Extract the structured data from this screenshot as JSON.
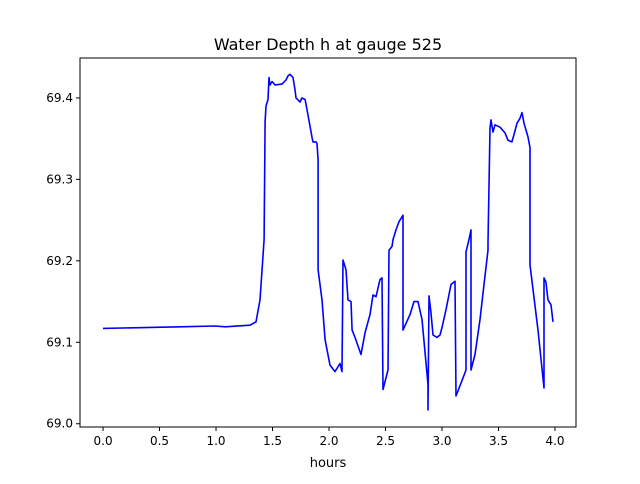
{
  "chart_data": {
    "type": "line",
    "title": "Water Depth h at gauge 525",
    "xlabel": "hours",
    "ylabel": "",
    "xlim": [
      -0.204,
      4.186
    ],
    "ylim": [
      68.996,
      69.449
    ],
    "xticks": [
      0.0,
      0.5,
      1.0,
      1.5,
      2.0,
      2.5,
      3.0,
      3.5,
      4.0
    ],
    "xtick_labels": [
      "0.0",
      "0.5",
      "1.0",
      "1.5",
      "2.0",
      "2.5",
      "3.0",
      "3.5",
      "4.0"
    ],
    "yticks": [
      69.0,
      69.1,
      69.2,
      69.3,
      69.4
    ],
    "ytick_labels": [
      "69.0",
      "69.1",
      "69.2",
      "69.3",
      "69.4"
    ],
    "grid": false,
    "series": [
      {
        "name": "h",
        "color": "#0000ff",
        "x": [
          0,
          0.681,
          0.991,
          1.08,
          1.301,
          1.354,
          1.389,
          1.425,
          1.434,
          1.442,
          1.46,
          1.469,
          1.478,
          1.496,
          1.522,
          1.584,
          1.619,
          1.637,
          1.655,
          1.681,
          1.699,
          1.708,
          1.743,
          1.761,
          1.788,
          1.814,
          1.85,
          1.858,
          1.885,
          1.894,
          1.903,
          1.903,
          1.938,
          1.965,
          2.009,
          2.053,
          2.097,
          2.115,
          2.124,
          2.15,
          2.168,
          2.195,
          2.204,
          2.23,
          2.248,
          2.283,
          2.319,
          2.363,
          2.389,
          2.416,
          2.451,
          2.469,
          2.478,
          2.522,
          2.531,
          2.558,
          2.566,
          2.593,
          2.619,
          2.655,
          2.655,
          2.717,
          2.752,
          2.788,
          2.823,
          2.876,
          2.876,
          2.885,
          2.903,
          2.92,
          2.956,
          2.982,
          3.0,
          3.035,
          3.08,
          3.115,
          3.124,
          3.177,
          3.212,
          3.212,
          3.239,
          3.257,
          3.257,
          3.292,
          3.336,
          3.372,
          3.407,
          3.407,
          3.425,
          3.434,
          3.451,
          3.469,
          3.513,
          3.558,
          3.584,
          3.619,
          3.637,
          3.664,
          3.69,
          3.708,
          3.726,
          3.761,
          3.779,
          3.779,
          3.85,
          3.903,
          3.903,
          3.92,
          3.938,
          3.965,
          3.982
        ],
        "y": [
          69.117,
          69.119,
          69.12,
          69.119,
          69.121,
          69.125,
          69.152,
          69.226,
          69.371,
          69.39,
          69.398,
          69.425,
          69.416,
          69.42,
          69.416,
          69.417,
          69.422,
          69.427,
          69.429,
          69.425,
          69.41,
          69.4,
          69.395,
          69.4,
          69.398,
          69.379,
          69.351,
          69.346,
          69.346,
          69.344,
          69.324,
          69.189,
          69.152,
          69.103,
          69.072,
          69.064,
          69.074,
          69.064,
          69.201,
          69.189,
          69.152,
          69.15,
          69.115,
          69.106,
          69.099,
          69.085,
          69.112,
          69.134,
          69.158,
          69.156,
          69.177,
          69.179,
          69.042,
          69.066,
          69.213,
          69.218,
          69.226,
          69.238,
          69.248,
          69.256,
          69.115,
          69.134,
          69.15,
          69.15,
          69.128,
          69.048,
          69.017,
          69.157,
          69.136,
          69.109,
          69.106,
          69.109,
          69.118,
          69.14,
          69.171,
          69.175,
          69.034,
          69.053,
          69.066,
          69.211,
          69.226,
          69.238,
          69.066,
          69.085,
          69.128,
          69.171,
          69.213,
          69.222,
          69.363,
          69.373,
          69.358,
          69.367,
          69.364,
          69.357,
          69.348,
          69.346,
          69.355,
          69.369,
          69.375,
          69.382,
          69.369,
          69.352,
          69.339,
          69.195,
          69.115,
          69.044,
          69.179,
          69.174,
          69.152,
          69.146,
          69.125
        ]
      }
    ]
  }
}
